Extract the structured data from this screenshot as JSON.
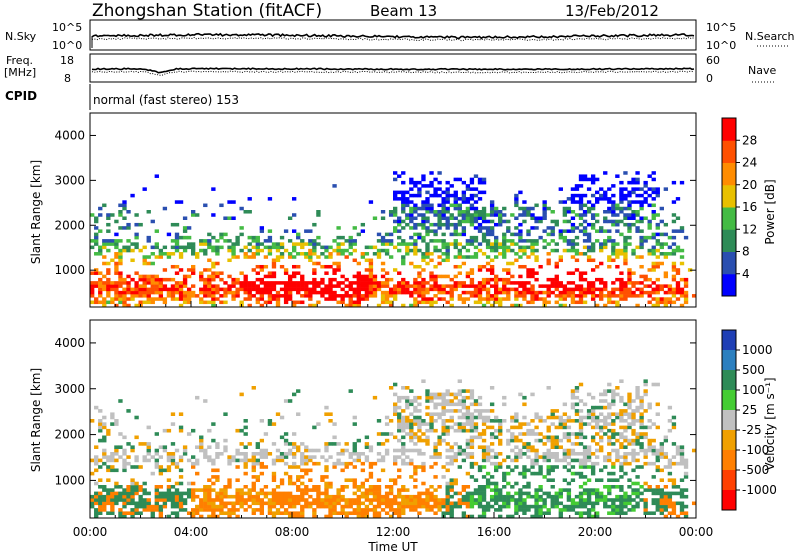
{
  "header": {
    "station": "Zhongshan Station (fitACF)",
    "beam": "Beam 13",
    "date": "13/Feb/2012"
  },
  "strip_panels": {
    "nsky": {
      "left_label": "N.Sky",
      "left_ticks": [
        "10^5",
        "10^0"
      ],
      "right_label": "N.Search",
      "right_ticks": [
        "10^5",
        "10^0"
      ]
    },
    "freq": {
      "left_label_top": "Freq.",
      "left_label_bottom": "[MHz]",
      "left_ticks": [
        "18",
        "8"
      ],
      "right_label": "Nave",
      "right_ticks": [
        "60",
        "0"
      ]
    },
    "cpid": {
      "label": "CPID",
      "text": "normal (fast stereo) 153"
    }
  },
  "chart_data": [
    {
      "type": "heatmap",
      "panel": "power",
      "ylabel": "Slant Range [km]",
      "xlabel": "",
      "ylim": [
        180,
        4500
      ],
      "yticks": [
        "1000",
        "2000",
        "3000",
        "4000"
      ],
      "colorbar_label": "Power [dB]",
      "colorbar_ticks": [
        "4",
        "8",
        "12",
        "16",
        "20",
        "24",
        "28"
      ],
      "colorbar_colors": [
        "#0000ff",
        "#2a4fb0",
        "#2e8b57",
        "#44bb44",
        "#e8c000",
        "#ff8c00",
        "#ff5000",
        "#ff0000"
      ],
      "grid": false,
      "legend": "right"
    },
    {
      "type": "heatmap",
      "panel": "velocity",
      "ylabel": "Slant Range [km]",
      "xlabel": "Time UT",
      "ylim": [
        180,
        4500
      ],
      "yticks": [
        "1000",
        "2000",
        "3000",
        "4000"
      ],
      "xticks": [
        "00:00",
        "04:00",
        "08:00",
        "12:00",
        "16:00",
        "20:00",
        "00:00"
      ],
      "colorbar_label": "Velocity [m s⁻¹]",
      "colorbar_ticks": [
        "1000",
        "500",
        "100",
        "25",
        "-25",
        "-100",
        "-500",
        "-1000"
      ],
      "colorbar_colors": [
        "#1f3fb5",
        "#2b7fbf",
        "#2e8b57",
        "#44cc33",
        "#c0c0c0",
        "#f0a000",
        "#ff7f00",
        "#ff4000",
        "#ff0000"
      ],
      "grid": false,
      "legend": "right"
    }
  ]
}
